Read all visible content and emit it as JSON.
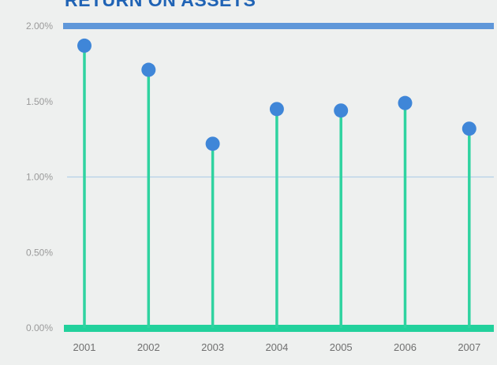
{
  "chart_data": {
    "type": "lollipop",
    "title": "RETURN ON ASSETS",
    "xlabel": "",
    "ylabel": "",
    "categories": [
      "2001",
      "2002",
      "2003",
      "2004",
      "2005",
      "2006",
      "2007"
    ],
    "values": [
      1.87,
      1.71,
      1.22,
      1.45,
      1.44,
      1.49,
      1.32
    ],
    "ylim": [
      0,
      2.0
    ],
    "yticks": [
      0,
      0.5,
      1.0,
      1.5,
      2.0
    ],
    "ytick_labels": [
      "0.00%",
      "0.50%",
      "1.00%",
      "1.50%",
      "2.00%"
    ],
    "reference_line": 1.0,
    "colors": {
      "stem": "#2fd3a0",
      "dot": "#3f86d8",
      "baseline": "#22d19c",
      "top_band": "#5f97d9",
      "reference": "#b5cfe8",
      "title": "#1f63b5",
      "background": "#eef0ef"
    }
  }
}
